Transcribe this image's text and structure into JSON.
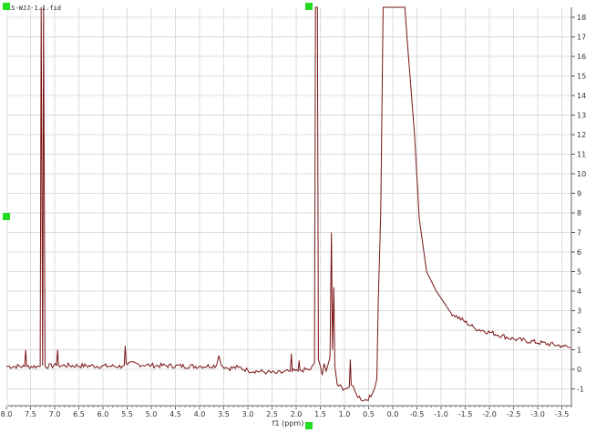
{
  "spectrum_title": "LS-WJJ-1.1.fid",
  "colors": {
    "spectrum": "#7a1414",
    "grid": "#dcdcdc",
    "handle": "#22dd22"
  },
  "chart_data": {
    "type": "line",
    "title": "",
    "xlabel": "f1 (ppm)",
    "ylabel": "",
    "xlim": [
      8.0,
      -3.68
    ],
    "ylim": [
      -1.5,
      18.5
    ],
    "x_reversed": true,
    "grid": true,
    "xticks": [
      "8.0",
      "7.5",
      "7.0",
      "6.5",
      "6.0",
      "5.5",
      "5.0",
      "4.5",
      "4.0",
      "3.5",
      "3.0",
      "2.5",
      "2.0",
      "1.5",
      "1.0",
      "0.5",
      "0.0",
      "-0.5",
      "-1.0",
      "-1.5",
      "-2.0",
      "-2.5",
      "-3.0",
      "-3.5"
    ],
    "yticks": [
      "-1",
      "0",
      "1",
      "2",
      "3",
      "4",
      "5",
      "6",
      "7",
      "8",
      "9",
      "10",
      "11",
      "12",
      "13",
      "14",
      "15",
      "16",
      "17",
      "18"
    ],
    "series": [
      {
        "x": [
          8.0,
          7.62,
          7.6,
          7.58,
          7.3,
          7.28,
          7.25,
          7.23,
          7.2,
          6.96,
          6.94,
          6.92,
          5.6,
          5.56,
          5.54,
          5.52,
          5.0,
          4.0,
          3.65,
          3.6,
          3.55,
          3.4,
          3.2,
          3.0,
          2.6,
          2.4,
          2.12,
          2.1,
          2.08,
          1.96,
          1.94,
          1.92,
          1.7,
          1.62,
          1.6,
          1.56,
          1.54,
          1.46,
          1.42,
          1.38,
          1.3,
          1.27,
          1.25,
          1.22,
          1.2,
          1.15,
          1.0,
          0.9,
          0.88,
          0.86,
          0.75,
          0.6,
          0.45,
          0.38,
          0.33,
          0.3,
          0.25,
          0.2,
          -0.25,
          -0.3,
          -0.45,
          -0.55,
          -0.7,
          -0.9,
          -1.2,
          -1.7,
          -2.5,
          -3.5,
          -3.68
        ],
        "y": [
          0.15,
          0.15,
          1.0,
          0.15,
          0.15,
          19.5,
          0.2,
          19.5,
          0.15,
          0.2,
          1.0,
          0.2,
          0.15,
          0.2,
          1.2,
          0.3,
          0.2,
          0.15,
          0.2,
          0.7,
          0.2,
          0.05,
          0.1,
          -0.05,
          -0.15,
          -0.2,
          -0.1,
          0.8,
          -0.1,
          -0.1,
          0.45,
          -0.05,
          0.0,
          0.3,
          19.5,
          19.5,
          0.5,
          -0.3,
          0.3,
          -0.1,
          0.6,
          7.0,
          1.0,
          4.2,
          0.2,
          -0.8,
          -1.0,
          -0.9,
          0.5,
          -0.8,
          -1.3,
          -1.6,
          -1.4,
          -1.0,
          -0.5,
          3.5,
          8.0,
          19.5,
          19.5,
          16.8,
          12.0,
          7.7,
          5.0,
          4.0,
          2.9,
          2.1,
          1.55,
          1.2,
          1.1
        ]
      }
    ]
  }
}
